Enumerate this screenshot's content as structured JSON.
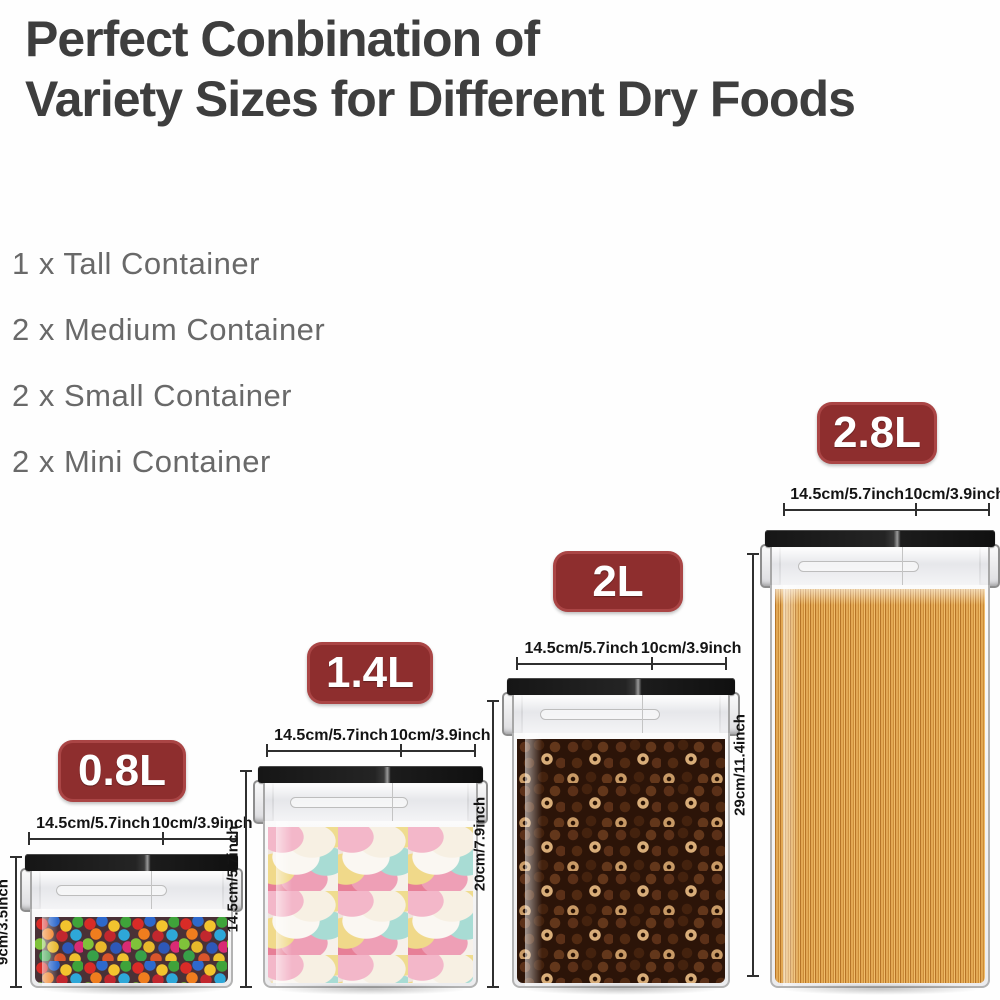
{
  "title": {
    "line1": "Perfect Conbination of",
    "line2": "Variety Sizes for Different Dry Foods"
  },
  "package_contents": [
    {
      "label": "1 x Tall Container"
    },
    {
      "label": "2 x Medium Container"
    },
    {
      "label": "2 x Small Container"
    },
    {
      "label": "2 x Mini Container"
    }
  ],
  "containers": [
    {
      "size_badge": "0.8L",
      "width_label": "14.5cm/5.7inch",
      "depth_label": "10cm/3.9inch",
      "height_label": "9cm/3.5inch",
      "contents": "rainbow-candies"
    },
    {
      "size_badge": "1.4L",
      "width_label": "14.5cm/5.7inch",
      "depth_label": "10cm/3.9inch",
      "height_label": "14.5cm/5.7inch",
      "contents": "marshmallows"
    },
    {
      "size_badge": "2L",
      "width_label": "14.5cm/5.7inch",
      "depth_label": "10cm/3.9inch",
      "height_label": "20cm/7.9inch",
      "contents": "chocolate-cereal"
    },
    {
      "size_badge": "2.8L",
      "width_label": "14.5cm/5.7inch",
      "depth_label": "10cm/3.9inch",
      "height_label": "29cm/11.4inch",
      "contents": "spaghetti"
    }
  ],
  "colors": {
    "badge_bg": "#8e2e2e",
    "badge_text": "#ffffff",
    "title_text": "#3e3e3e",
    "list_text": "#696969",
    "dimension_line": "#2f2f2f",
    "dimension_text": "#141414"
  }
}
